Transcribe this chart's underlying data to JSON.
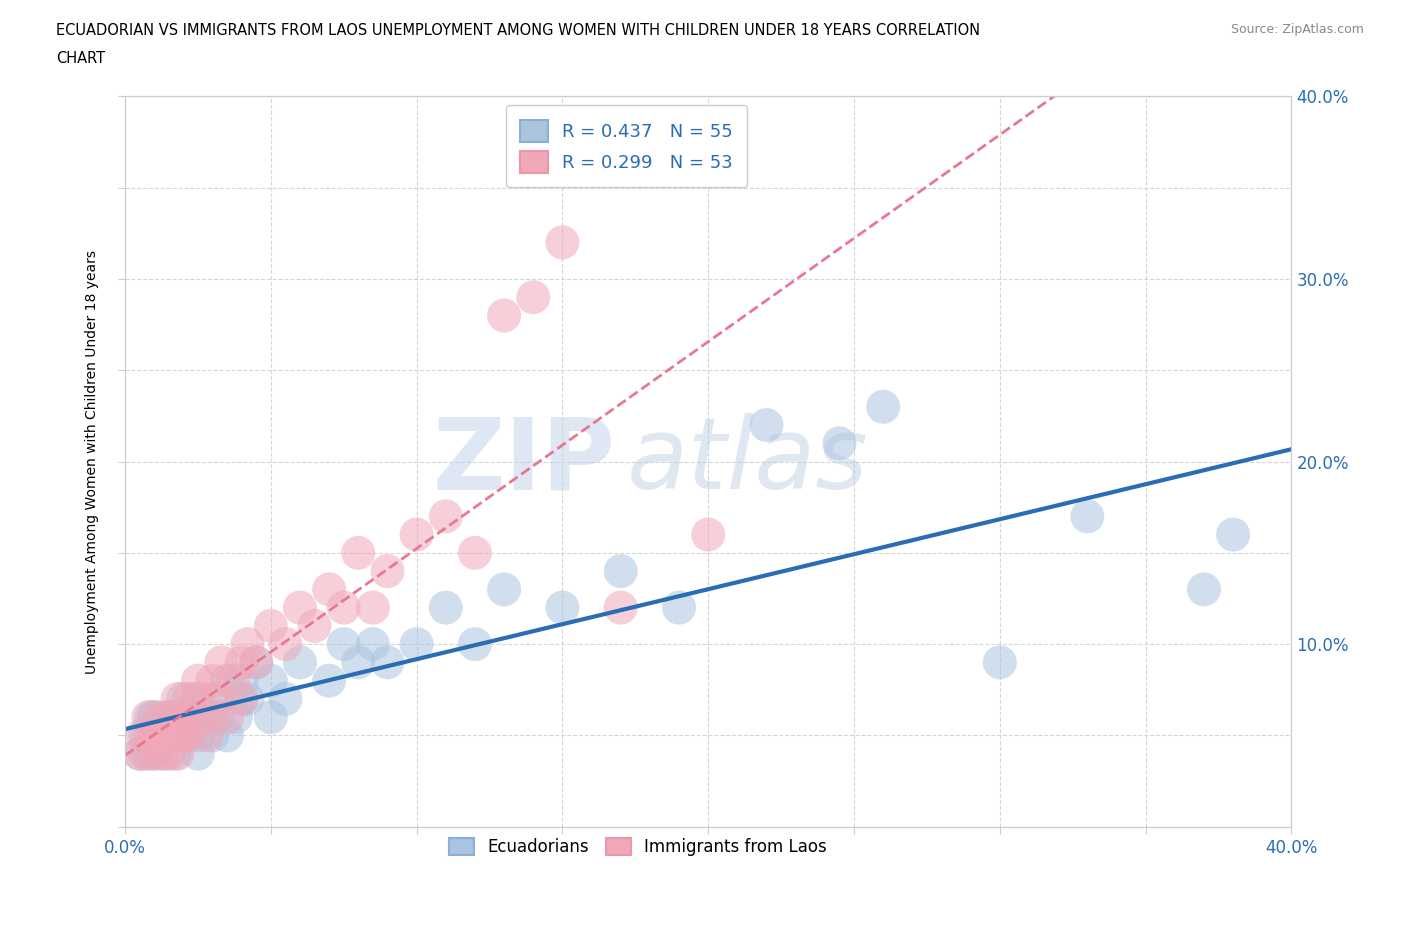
{
  "title_line1": "ECUADORIAN VS IMMIGRANTS FROM LAOS UNEMPLOYMENT AMONG WOMEN WITH CHILDREN UNDER 18 YEARS CORRELATION",
  "title_line2": "CHART",
  "source": "Source: ZipAtlas.com",
  "ylabel": "Unemployment Among Women with Children Under 18 years",
  "xlim": [
    0.0,
    0.4
  ],
  "ylim": [
    0.0,
    0.4
  ],
  "xticks": [
    0.0,
    0.05,
    0.1,
    0.15,
    0.2,
    0.25,
    0.3,
    0.35,
    0.4
  ],
  "yticks": [
    0.0,
    0.05,
    0.1,
    0.15,
    0.2,
    0.25,
    0.3,
    0.35,
    0.4
  ],
  "color_blue": "#aac4e0",
  "color_pink": "#f0a8b8",
  "trendline_blue_color": "#2a6db5",
  "trendline_pink_color": "#e87890",
  "R_blue": 0.437,
  "N_blue": 55,
  "R_pink": 0.299,
  "N_pink": 53,
  "watermark_zip": "ZIP",
  "watermark_atlas": "atlas",
  "ecuadorians_x": [
    0.005,
    0.007,
    0.008,
    0.009,
    0.01,
    0.01,
    0.01,
    0.012,
    0.013,
    0.015,
    0.015,
    0.017,
    0.018,
    0.02,
    0.02,
    0.02,
    0.022,
    0.022,
    0.025,
    0.025,
    0.025,
    0.028,
    0.03,
    0.03,
    0.032,
    0.035,
    0.035,
    0.038,
    0.04,
    0.04,
    0.042,
    0.045,
    0.05,
    0.05,
    0.055,
    0.06,
    0.07,
    0.075,
    0.08,
    0.085,
    0.09,
    0.1,
    0.11,
    0.12,
    0.13,
    0.15,
    0.17,
    0.19,
    0.22,
    0.245,
    0.26,
    0.3,
    0.33,
    0.37,
    0.38
  ],
  "ecuadorians_y": [
    0.04,
    0.05,
    0.04,
    0.06,
    0.04,
    0.05,
    0.06,
    0.05,
    0.04,
    0.05,
    0.06,
    0.04,
    0.06,
    0.05,
    0.06,
    0.07,
    0.05,
    0.06,
    0.04,
    0.05,
    0.07,
    0.06,
    0.05,
    0.07,
    0.06,
    0.05,
    0.08,
    0.06,
    0.07,
    0.08,
    0.07,
    0.09,
    0.06,
    0.08,
    0.07,
    0.09,
    0.08,
    0.1,
    0.09,
    0.1,
    0.09,
    0.1,
    0.12,
    0.1,
    0.13,
    0.12,
    0.14,
    0.12,
    0.22,
    0.21,
    0.23,
    0.09,
    0.17,
    0.13,
    0.16
  ],
  "laos_x": [
    0.005,
    0.006,
    0.007,
    0.008,
    0.009,
    0.01,
    0.01,
    0.012,
    0.012,
    0.013,
    0.014,
    0.015,
    0.015,
    0.016,
    0.017,
    0.018,
    0.018,
    0.019,
    0.02,
    0.02,
    0.022,
    0.022,
    0.025,
    0.025,
    0.025,
    0.028,
    0.03,
    0.03,
    0.032,
    0.033,
    0.035,
    0.037,
    0.04,
    0.04,
    0.042,
    0.045,
    0.05,
    0.055,
    0.06,
    0.065,
    0.07,
    0.075,
    0.08,
    0.085,
    0.09,
    0.1,
    0.11,
    0.12,
    0.13,
    0.14,
    0.15,
    0.17,
    0.2
  ],
  "laos_y": [
    0.04,
    0.05,
    0.04,
    0.06,
    0.05,
    0.04,
    0.05,
    0.05,
    0.06,
    0.04,
    0.05,
    0.04,
    0.06,
    0.05,
    0.06,
    0.04,
    0.07,
    0.05,
    0.05,
    0.06,
    0.05,
    0.07,
    0.06,
    0.07,
    0.08,
    0.05,
    0.06,
    0.08,
    0.07,
    0.09,
    0.06,
    0.08,
    0.07,
    0.09,
    0.1,
    0.09,
    0.11,
    0.1,
    0.12,
    0.11,
    0.13,
    0.12,
    0.15,
    0.12,
    0.14,
    0.16,
    0.17,
    0.15,
    0.28,
    0.29,
    0.32,
    0.12,
    0.16
  ]
}
